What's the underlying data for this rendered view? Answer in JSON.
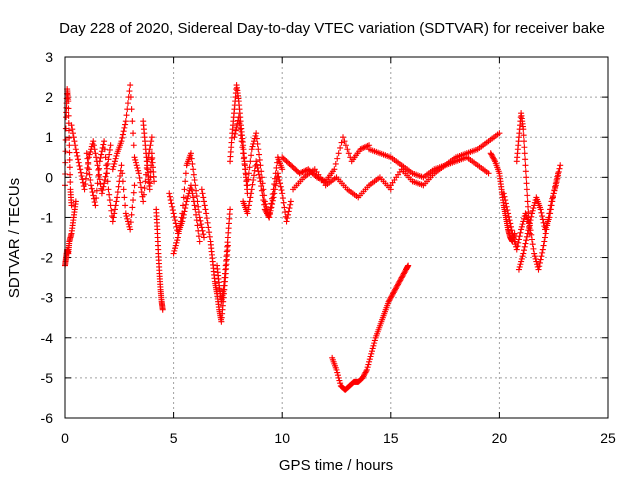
{
  "chart_data": {
    "type": "scatter",
    "title": "Day 228 of 2020, Sidereal Day-to-day VTEC variation (SDTVAR) for receiver bake",
    "xlabel": "GPS time / hours",
    "ylabel": "SDTVAR / TECUs",
    "xlim": [
      0,
      25
    ],
    "ylim": [
      -6,
      3
    ],
    "xticks": [
      0,
      5,
      10,
      15,
      20,
      25
    ],
    "yticks": [
      -6,
      -5,
      -4,
      -3,
      -2,
      -1,
      0,
      1,
      2,
      3
    ],
    "xtick_labels": [
      "0",
      "5",
      "10",
      "15",
      "20",
      "25"
    ],
    "ytick_labels": [
      "-6",
      "-5",
      "-4",
      "-3",
      "-2",
      "-1",
      "0",
      "1",
      "2",
      "3"
    ],
    "grid": true,
    "marker": "+",
    "color": "#ff0000",
    "series": [
      {
        "name": "SDTVAR",
        "segments": [
          {
            "x": [
              0.0,
              0.05,
              0.1,
              0.15,
              0.2,
              0.25,
              0.3
            ],
            "y": [
              -0.2,
              1.5,
              2.2,
              1.9,
              0.8,
              -0.3,
              -0.7
            ]
          },
          {
            "x": [
              0.0,
              0.05,
              0.1,
              0.15,
              0.2,
              0.3,
              0.4,
              0.5
            ],
            "y": [
              -2.2,
              -2.0,
              -1.8,
              -1.9,
              -1.6,
              -1.4,
              -1.0,
              -0.6
            ]
          },
          {
            "x": [
              0.3,
              0.5,
              0.7,
              0.9,
              1.1,
              1.3,
              1.5,
              1.7,
              1.9,
              2.1
            ],
            "y": [
              1.3,
              0.7,
              0.2,
              -0.3,
              0.5,
              0.9,
              0.3,
              -0.4,
              0.1,
              0.8
            ]
          },
          {
            "x": [
              1.0,
              1.2,
              1.4,
              1.6,
              1.8,
              2.0,
              2.2,
              2.4,
              2.6,
              2.8,
              3.0,
              3.2
            ],
            "y": [
              0.6,
              -0.2,
              -0.7,
              0.4,
              0.9,
              -0.3,
              -1.1,
              -0.5,
              0.3,
              -0.9,
              -1.3,
              -0.2
            ]
          },
          {
            "x": [
              2.2,
              2.4,
              2.6,
              2.8,
              3.0,
              3.2,
              3.4,
              3.6,
              3.8,
              4.0
            ],
            "y": [
              0.2,
              0.6,
              0.9,
              1.4,
              2.3,
              0.5,
              0.1,
              -0.6,
              0.4,
              1.0
            ]
          },
          {
            "x": [
              3.6,
              3.7,
              3.8,
              3.9,
              4.0,
              4.1
            ],
            "y": [
              1.4,
              0.8,
              0.2,
              -0.3,
              0.6,
              -0.1
            ]
          },
          {
            "x": [
              4.2,
              4.25,
              4.3,
              4.35,
              4.4,
              4.45,
              4.5
            ],
            "y": [
              -0.8,
              -1.3,
              -1.9,
              -2.4,
              -2.8,
              -3.1,
              -3.3
            ]
          },
          {
            "x": [
              4.8,
              5.0,
              5.2,
              5.4,
              5.6,
              5.8,
              6.0,
              6.2
            ],
            "y": [
              -0.4,
              -0.9,
              -1.4,
              -1.1,
              -0.6,
              -0.2,
              -0.8,
              -1.6
            ]
          },
          {
            "x": [
              5.0,
              5.2,
              5.4,
              5.6,
              5.8,
              6.0,
              6.2,
              6.4
            ],
            "y": [
              -1.9,
              -1.5,
              -0.9,
              0.3,
              0.6,
              -0.2,
              -1.0,
              -1.5
            ]
          },
          {
            "x": [
              6.3,
              6.5,
              6.7,
              6.8,
              6.9,
              7.0,
              7.1,
              7.2,
              7.3,
              7.4,
              7.5
            ],
            "y": [
              -0.3,
              -0.9,
              -1.6,
              -2.1,
              -2.6,
              -2.9,
              -3.3,
              -3.6,
              -3.0,
              -2.4,
              -1.7
            ]
          },
          {
            "x": [
              7.0,
              7.1,
              7.2,
              7.3,
              7.4,
              7.5,
              7.6
            ],
            "y": [
              -2.2,
              -2.7,
              -3.1,
              -2.8,
              -2.2,
              -1.5,
              -0.8
            ]
          },
          {
            "x": [
              7.6,
              7.7,
              7.8,
              7.9,
              8.0,
              8.1,
              8.2,
              8.3,
              8.4
            ],
            "y": [
              0.4,
              1.1,
              1.7,
              2.3,
              1.9,
              1.3,
              0.8,
              0.2,
              -0.4
            ]
          },
          {
            "x": [
              7.8,
              8.0,
              8.2,
              8.4,
              8.6,
              8.8,
              9.0,
              9.2,
              9.4,
              9.6,
              9.8,
              10.0
            ],
            "y": [
              1.0,
              1.5,
              0.6,
              -0.2,
              0.7,
              1.1,
              0.3,
              -0.6,
              -1.0,
              -0.3,
              0.5,
              0.2
            ]
          },
          {
            "x": [
              8.2,
              8.4,
              8.6,
              8.8,
              9.0,
              9.2,
              9.4,
              9.6,
              9.8,
              10.0,
              10.2,
              10.4
            ],
            "y": [
              -0.6,
              -0.9,
              -0.3,
              0.4,
              -0.1,
              -0.8,
              -1.0,
              -0.5,
              0.1,
              -0.4,
              -1.1,
              -0.6
            ]
          },
          {
            "x": [
              10.0,
              10.4,
              10.8,
              11.2,
              11.6,
              12.0,
              12.4,
              12.8,
              13.2,
              13.6,
              14.0
            ],
            "y": [
              0.5,
              0.3,
              0.1,
              0.2,
              0.0,
              -0.1,
              0.2,
              1.0,
              0.4,
              0.7,
              0.8
            ]
          },
          {
            "x": [
              10.5,
              11.0,
              11.5,
              12.0,
              12.5,
              13.0,
              13.5,
              14.0,
              14.5,
              15.0
            ],
            "y": [
              -0.3,
              0.0,
              0.2,
              -0.2,
              0.0,
              -0.3,
              -0.5,
              -0.2,
              0.0,
              -0.3
            ]
          },
          {
            "x": [
              12.3,
              12.5,
              12.7,
              12.9,
              13.1,
              13.3,
              13.5,
              13.7,
              13.9,
              14.1,
              14.3,
              14.5,
              14.7,
              14.9,
              15.1,
              15.3,
              15.5,
              15.7,
              15.8
            ],
            "y": [
              -4.5,
              -4.8,
              -5.2,
              -5.3,
              -5.2,
              -5.1,
              -5.1,
              -5.0,
              -4.8,
              -4.4,
              -4.0,
              -3.7,
              -3.4,
              -3.1,
              -2.9,
              -2.7,
              -2.5,
              -2.3,
              -2.2
            ]
          },
          {
            "x": [
              14.0,
              14.5,
              15.0,
              15.5,
              16.0,
              16.5,
              17.0,
              17.5,
              18.0,
              18.5,
              19.0,
              19.5,
              20.0
            ],
            "y": [
              0.7,
              0.6,
              0.5,
              0.3,
              0.1,
              0.0,
              0.2,
              0.3,
              0.5,
              0.6,
              0.7,
              0.9,
              1.1
            ]
          },
          {
            "x": [
              15.0,
              15.5,
              16.0,
              16.5,
              17.0,
              17.5,
              18.0,
              18.5,
              19.0,
              19.5
            ],
            "y": [
              -0.2,
              0.2,
              -0.1,
              -0.2,
              0.1,
              0.3,
              0.4,
              0.5,
              0.3,
              0.1
            ]
          },
          {
            "x": [
              19.6,
              19.8,
              20.0,
              20.1,
              20.2,
              20.3,
              20.4,
              20.5,
              20.6,
              20.7
            ],
            "y": [
              0.6,
              0.4,
              0.1,
              -0.3,
              -0.7,
              -1.0,
              -1.3,
              -1.5,
              -1.6,
              -1.4
            ]
          },
          {
            "x": [
              20.2,
              20.4,
              20.6,
              20.8,
              21.0,
              21.2,
              21.4,
              21.6,
              21.8,
              22.0,
              22.2,
              22.4,
              22.6,
              22.8
            ],
            "y": [
              -0.4,
              -0.9,
              -1.4,
              -1.8,
              -1.3,
              -0.9,
              -1.2,
              -1.9,
              -2.3,
              -1.8,
              -1.2,
              -0.6,
              -0.2,
              0.3
            ]
          },
          {
            "x": [
              20.8,
              20.9,
              21.0,
              21.1,
              21.2,
              21.3,
              21.4
            ],
            "y": [
              0.4,
              1.0,
              1.6,
              1.2,
              0.3,
              -0.6,
              -1.4
            ]
          },
          {
            "x": [
              20.9,
              21.1,
              21.3,
              21.5,
              21.7,
              21.9,
              22.1,
              22.3,
              22.5,
              22.7
            ],
            "y": [
              -2.3,
              -1.9,
              -1.4,
              -0.9,
              -0.5,
              -0.8,
              -1.3,
              -1.0,
              -0.4,
              0.1
            ]
          }
        ]
      }
    ]
  }
}
